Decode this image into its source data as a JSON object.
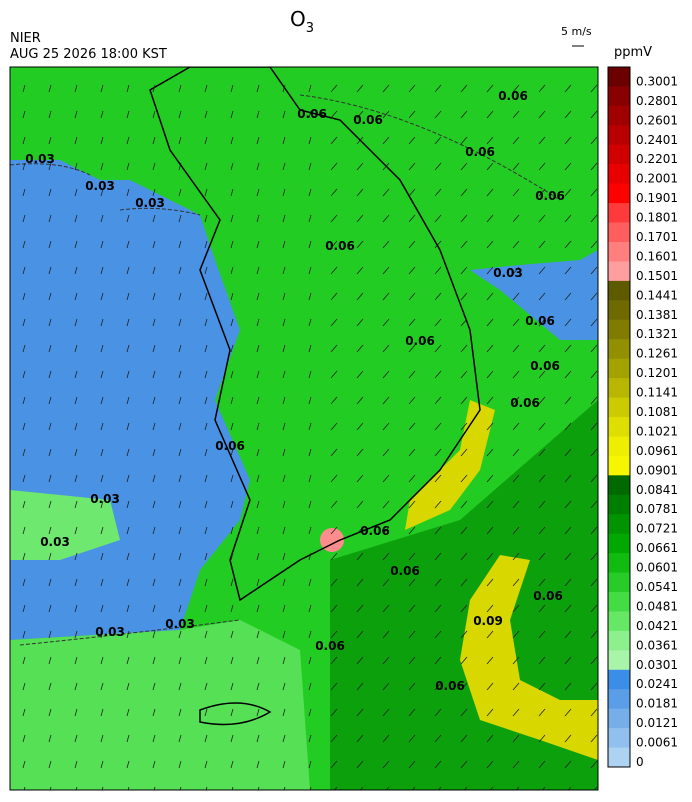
{
  "header": {
    "agency": "NIER",
    "datetime": "AUG 25 2026 18:00 KST",
    "title": {
      "main": "O",
      "subscript": "3"
    },
    "wind_scale": "5 m/s"
  },
  "legend": {
    "unit": "ppmV",
    "labels": [
      "0.3001",
      "0.2801",
      "0.2601",
      "0.2401",
      "0.2201",
      "0.2001",
      "0.1901",
      "0.1801",
      "0.1701",
      "0.1601",
      "0.1501",
      "0.1441",
      "0.1381",
      "0.1321",
      "0.1261",
      "0.1201",
      "0.1141",
      "0.1081",
      "0.1021",
      "0.0961",
      "0.0901",
      "0.0841",
      "0.0781",
      "0.0721",
      "0.0661",
      "0.0601",
      "0.0541",
      "0.0481",
      "0.0421",
      "0.0361",
      "0.0301",
      "0.0241",
      "0.0181",
      "0.0121",
      "0.0061",
      "0"
    ],
    "colors": [
      "#6b0000",
      "#880000",
      "#a00000",
      "#b80000",
      "#d00000",
      "#e80000",
      "#ff0000",
      "#ff3a3a",
      "#ff5e5e",
      "#ff7e7e",
      "#ff9e9e",
      "#5e5a00",
      "#6e6a00",
      "#807c00",
      "#929000",
      "#a4a200",
      "#b8b600",
      "#cccb00",
      "#dede00",
      "#eeee00",
      "#f6f600",
      "#006a00",
      "#007e00",
      "#009400",
      "#00a800",
      "#10bc10",
      "#28cc28",
      "#44dc44",
      "#66e866",
      "#8cf08c",
      "#a8f4a8",
      "#3a8ee8",
      "#5a9ee8",
      "#76aeea",
      "#92c0ee",
      "#aed2f2"
    ]
  },
  "contour_labels": [
    "0.03",
    "0.03",
    "0.03",
    "0.03",
    "0.03",
    "0.03",
    "0.03",
    "0.06",
    "0.06",
    "0.06",
    "0.06",
    "0.06",
    "0.03",
    "0.06",
    "0.06",
    "0.06",
    "0.06",
    "0.06",
    "0.06",
    "0.06",
    "0.06",
    "0.06",
    "0.06",
    "0.06",
    "0.09"
  ]
}
